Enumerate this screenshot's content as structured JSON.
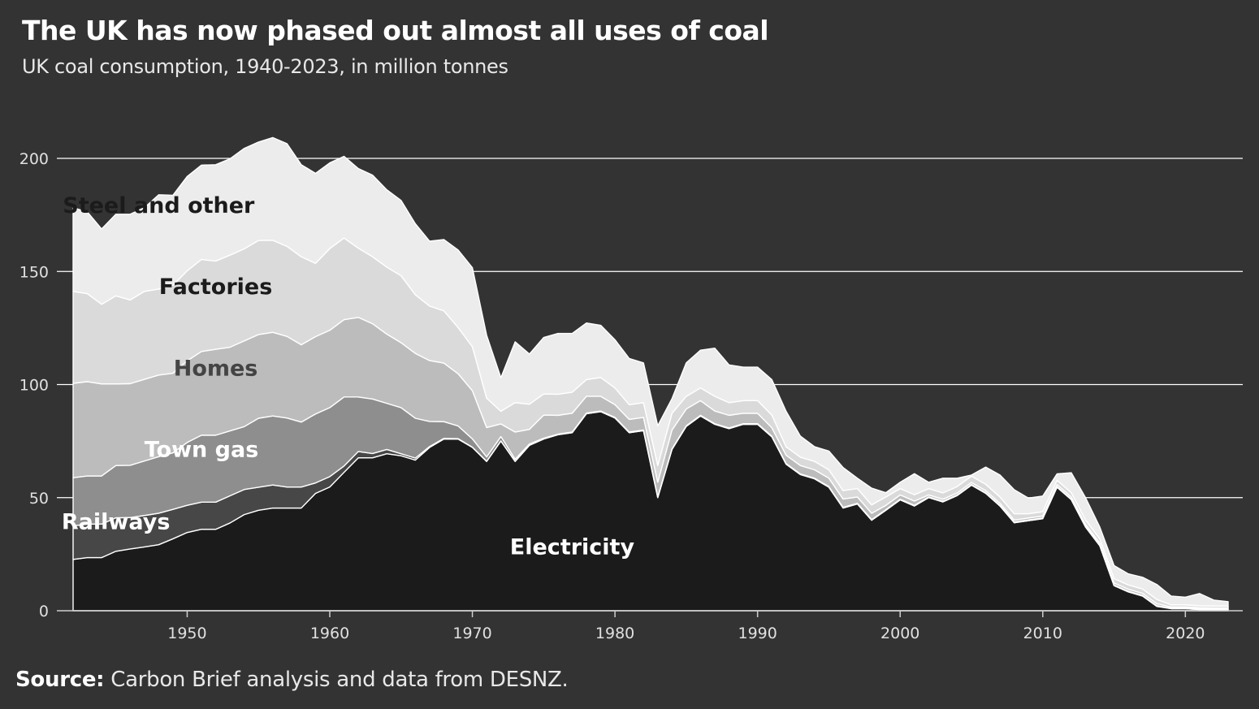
{
  "title": "The UK has now phased out almost all uses of coal",
  "subtitle": "UK coal consumption, 1940-2023, in million tonnes",
  "source": {
    "label": "Source:",
    "text": "Carbon Brief analysis and data from DESNZ."
  },
  "chart_data": {
    "type": "area",
    "stacked": true,
    "title": "The UK has now phased out almost all uses of coal",
    "subtitle": "UK coal consumption, 1940-2023, in million tonnes",
    "xlabel": "",
    "ylabel": "",
    "xlim": [
      1942,
      2023
    ],
    "ylim": [
      0,
      200
    ],
    "yticks": [
      0,
      50,
      100,
      150,
      200
    ],
    "xticks": [
      1950,
      1960,
      1970,
      1980,
      1990,
      2000,
      2010,
      2020
    ],
    "grid": "horizontal",
    "legend": "inline labels",
    "colors": {
      "background": "#333333",
      "grid": "#ffffff",
      "Electricity": "#1b1b1b",
      "Railways": "#474747",
      "Town gas": "#8e8e8e",
      "Homes": "#bcbcbc",
      "Factories": "#dadada",
      "Steel and other": "#ececec"
    },
    "series_labels": [
      {
        "name": "Steel and other",
        "year": 1948,
        "value": 176,
        "color": "#1b1b1b"
      },
      {
        "name": "Factories",
        "year": 1952,
        "value": 140,
        "color": "#1b1b1b"
      },
      {
        "name": "Homes",
        "year": 1952,
        "value": 104,
        "color": "#444444"
      },
      {
        "name": "Town gas",
        "year": 1951,
        "value": 68,
        "color": "#ffffff"
      },
      {
        "name": "Railways",
        "year": 1945,
        "value": 36,
        "color": "#ffffff"
      },
      {
        "name": "Electricity",
        "year": 1977,
        "value": 25,
        "color": "#ffffff"
      }
    ],
    "years": [
      1942,
      1943,
      1944,
      1945,
      1946,
      1947,
      1948,
      1949,
      1950,
      1951,
      1952,
      1953,
      1954,
      1955,
      1956,
      1957,
      1958,
      1959,
      1960,
      1961,
      1962,
      1963,
      1964,
      1965,
      1966,
      1967,
      1968,
      1969,
      1970,
      1971,
      1972,
      1973,
      1974,
      1975,
      1976,
      1977,
      1978,
      1979,
      1980,
      1981,
      1982,
      1983,
      1984,
      1985,
      1986,
      1987,
      1988,
      1989,
      1990,
      1991,
      1992,
      1993,
      1994,
      1995,
      1996,
      1997,
      1998,
      1999,
      2000,
      2001,
      2002,
      2003,
      2004,
      2005,
      2006,
      2007,
      2008,
      2009,
      2010,
      2011,
      2012,
      2013,
      2014,
      2015,
      2016,
      2017,
      2018,
      2019,
      2020,
      2021,
      2022,
      2023
    ],
    "series": [
      {
        "name": "Electricity",
        "values": [
          22.7,
          23.5,
          23.5,
          26.3,
          27.3,
          28.2,
          29.2,
          31.8,
          34.6,
          36,
          36,
          38.8,
          42.5,
          44.4,
          45.4,
          45.4,
          45.4,
          51.9,
          54.7,
          61.2,
          67.6,
          67.6,
          69.4,
          68.5,
          66.6,
          72.2,
          75.9,
          75.9,
          72.2,
          66,
          75,
          66,
          73.1,
          75.9,
          77.8,
          78.7,
          87.1,
          88,
          85.2,
          78.7,
          79.6,
          50,
          71.3,
          81.5,
          86.1,
          82.4,
          80.5,
          82.4,
          82.4,
          76.9,
          64.8,
          60.2,
          58.3,
          54.6,
          45.4,
          47.2,
          40,
          44.4,
          49,
          46.3,
          50,
          48.1,
          50.9,
          55.5,
          51.9,
          46.3,
          38.9,
          39.8,
          40.7,
          54.6,
          49.1,
          37,
          28.7,
          11.1,
          8.3,
          6.5,
          1.9,
          0.9,
          0.9,
          0.5,
          0.5,
          0.5
        ]
      },
      {
        "name": "Railways",
        "values": [
          14.8,
          14.8,
          14.8,
          14.8,
          13.9,
          13.9,
          13.9,
          13,
          12,
          12,
          12,
          12,
          11.1,
          10.2,
          10.2,
          9.3,
          9.3,
          4.6,
          4.6,
          2.8,
          2.8,
          1.9,
          1.9,
          0.9,
          0.9,
          0.4,
          0.3,
          0.2,
          0.1,
          0.1,
          0.1,
          0.1,
          0.1,
          0.1,
          0.1,
          0.1,
          0.1,
          0.1,
          0.1,
          0.1,
          0.1,
          0.1,
          0.1,
          0.1,
          0.1,
          0.1,
          0.1,
          0.1,
          0.1,
          0.1,
          0.1,
          0.1,
          0.1,
          0.1,
          0.1,
          0.1,
          0.1,
          0.1,
          0.1,
          0.1,
          0.1,
          0.1,
          0.1,
          0.1,
          0.1,
          0.1,
          0.1,
          0.1,
          0.1,
          0.1,
          0.1,
          0.1,
          0.1,
          0.1,
          0.1,
          0.1,
          0.1,
          0.1,
          0.1,
          0.1,
          0.1,
          0.1
        ]
      },
      {
        "name": "Town gas",
        "values": [
          21.3,
          21.3,
          21.3,
          23.1,
          23.1,
          24.1,
          25,
          25,
          27.8,
          29.6,
          29.6,
          28.7,
          27.8,
          30.5,
          30.5,
          30.5,
          28.7,
          30.5,
          30.5,
          30.5,
          24.1,
          24.1,
          20.4,
          20.4,
          17.6,
          11.1,
          7.4,
          5.6,
          3.7,
          1.9,
          1.9,
          0.9,
          0.5,
          0.3,
          0.2,
          0.2,
          0.2,
          0.2,
          0.2,
          0.2,
          0.2,
          0.2,
          0.2,
          0.2,
          0.2,
          0.2,
          0.2,
          0.2,
          0.2,
          0.2,
          0.2,
          0.2,
          0.2,
          0.2,
          0.2,
          0.2,
          0.2,
          0.2,
          0.2,
          0.2,
          0.2,
          0.2,
          0.2,
          0.2,
          0.2,
          0.2,
          0.2,
          0.2,
          0.2,
          0.2,
          0.2,
          0.2,
          0.2,
          0.2,
          0.2,
          0.2,
          0.2,
          0.2,
          0.2,
          0.2,
          0.2,
          0.2
        ]
      },
      {
        "name": "Homes",
        "values": [
          41.7,
          41.7,
          40.7,
          36.1,
          36.1,
          36.1,
          36.1,
          35.2,
          36.1,
          37,
          38,
          37,
          37.9,
          37,
          37,
          36.1,
          34.2,
          34.2,
          34.2,
          34.2,
          35.2,
          33.3,
          30.6,
          28.7,
          28.7,
          26.9,
          25.9,
          23.1,
          21.3,
          13,
          5.6,
          12,
          6.5,
          10.2,
          8.3,
          8.3,
          7.4,
          6.5,
          5.6,
          5.6,
          5.6,
          6.5,
          8.3,
          7.4,
          6.5,
          5.6,
          5.6,
          4.6,
          4.6,
          3.7,
          3.7,
          3.7,
          3.7,
          3.7,
          3.7,
          2.8,
          2.8,
          1.9,
          1.9,
          1.9,
          0.9,
          0.9,
          0.9,
          0.9,
          0.9,
          0.9,
          0.9,
          0.9,
          0.9,
          0.9,
          0.9,
          0.9,
          0.9,
          0.9,
          0.9,
          0.9,
          0.9,
          0.5,
          0.5,
          0.5,
          0.4,
          0.4
        ]
      },
      {
        "name": "Factories",
        "values": [
          40.7,
          38.9,
          35.2,
          38.9,
          37,
          38.9,
          38,
          38.9,
          39.8,
          40.7,
          39,
          40.7,
          40.7,
          41.6,
          40.7,
          39.8,
          38.9,
          32.4,
          36.1,
          36.1,
          30.6,
          29.6,
          29.6,
          29.6,
          25.9,
          24.1,
          23.1,
          20.4,
          19.4,
          13,
          5.6,
          13,
          11.1,
          9.3,
          9.3,
          9.3,
          7.4,
          8.3,
          7.4,
          6.5,
          6.5,
          7.4,
          7.4,
          5.6,
          5.6,
          6.5,
          5.6,
          5.6,
          5.6,
          5.6,
          3.7,
          3.7,
          3.7,
          3.7,
          3.7,
          3.7,
          3.7,
          3.7,
          2.8,
          2.8,
          2.8,
          2.8,
          2.8,
          2.8,
          2.8,
          2.8,
          2.8,
          1.9,
          1.9,
          1.9,
          1.9,
          1.9,
          1.9,
          1.9,
          1.9,
          1.9,
          1.9,
          0.9,
          0.9,
          0.9,
          0.9,
          0.9
        ]
      },
      {
        "name": "Steel and other",
        "values": [
          37,
          36.1,
          33.3,
          36.1,
          37.9,
          37,
          41.7,
          39.8,
          41.7,
          41.7,
          42.6,
          42.6,
          44.4,
          43.5,
          45.4,
          45.4,
          40.7,
          39.8,
          37.9,
          36.1,
          35.2,
          36.1,
          34.2,
          33.3,
          31.4,
          28.7,
          31.5,
          34.3,
          35,
          27.8,
          14.8,
          26.9,
          22.2,
          25,
          26.9,
          26,
          25,
          23.1,
          21.3,
          20.4,
          17.6,
          17.6,
          6.5,
          14.8,
          16.7,
          21.3,
          16.7,
          14.8,
          14.8,
          15.7,
          15.7,
          9.3,
          6.5,
          8.3,
          10.2,
          4.6,
          7.4,
          1.9,
          2.8,
          9.3,
          2.8,
          6.5,
          3.7,
          0.5,
          7.6,
          9.7,
          10.6,
          6.9,
          6.9,
          2.8,
          8.8,
          9.9,
          5.2,
          5.8,
          4.9,
          5.2,
          6.6,
          3.9,
          3.4,
          5.4,
          2.6,
          1.9
        ]
      }
    ]
  }
}
